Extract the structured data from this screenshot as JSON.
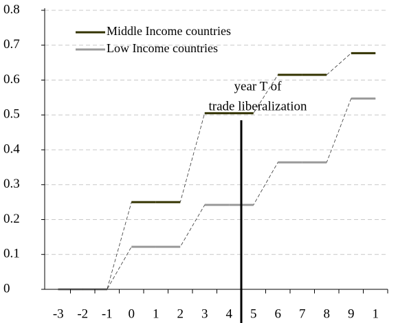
{
  "chart_data": {
    "type": "step",
    "categories": [
      "-3",
      "-2",
      "-1",
      "0",
      "1",
      "2",
      "3",
      "4",
      "5",
      "6",
      "7",
      "8",
      "9",
      "1"
    ],
    "series": [
      {
        "name": "Middle Income countries",
        "color": "#333300",
        "values": [
          0,
          0,
          0,
          0.25,
          0.25,
          0.25,
          0.505,
          0.505,
          0.505,
          0.615,
          0.615,
          0.615,
          0.677,
          0.677
        ]
      },
      {
        "name": "Low Income countries",
        "color": "#999999",
        "values": [
          0,
          0,
          0,
          0.122,
          0.122,
          0.122,
          0.242,
          0.242,
          0.242,
          0.364,
          0.364,
          0.364,
          0.547,
          0.547
        ]
      }
    ],
    "annotation": [
      "year T of",
      "trade liberalization"
    ],
    "ylim": [
      0,
      0.8
    ],
    "yticks": [
      0,
      0.1,
      0.2,
      0.3,
      0.4,
      0.5,
      0.6,
      0.7,
      0.8
    ],
    "grid": true,
    "legend": "upper left"
  }
}
